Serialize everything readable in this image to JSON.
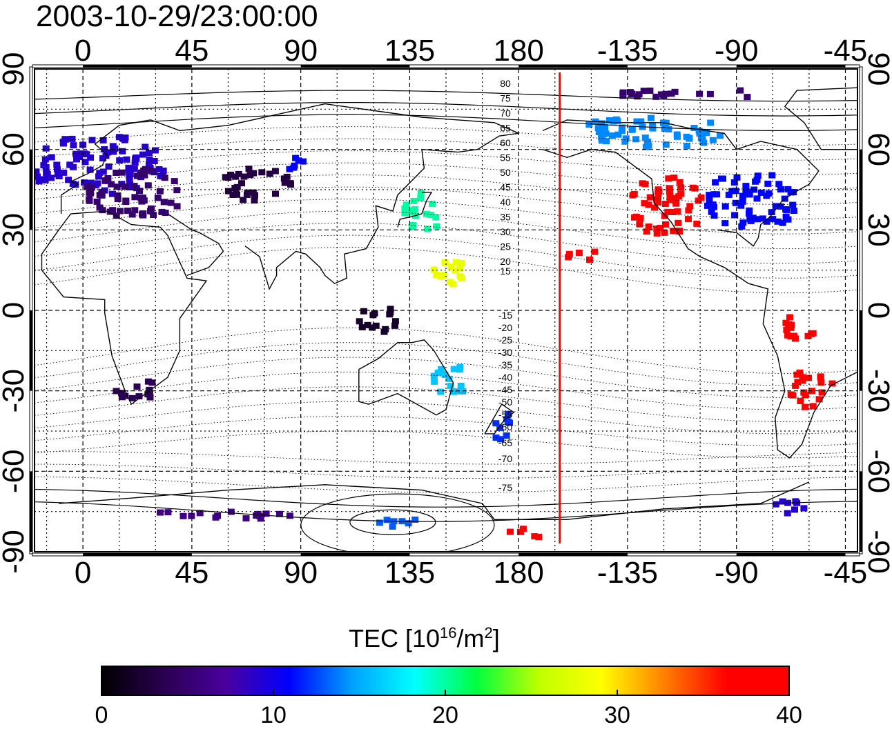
{
  "title": "2003-10-29/23:00:00",
  "axes": {
    "lon_ticks_top": [
      "0",
      "45",
      "90",
      "135",
      "180",
      "-135",
      "-90",
      "-45"
    ],
    "lon_ticks_bottom": [
      "0",
      "45",
      "90",
      "135",
      "180",
      "-135",
      "-90",
      "-45"
    ],
    "lat_ticks": [
      "90",
      "60",
      "30",
      "0",
      "-30",
      "-60",
      "-90"
    ],
    "lon_range": [
      -20,
      320
    ],
    "lat_range": [
      -90,
      90
    ]
  },
  "contour_labels": [
    "80",
    "75",
    "70",
    "65",
    "60",
    "55",
    "50",
    "45",
    "40",
    "35",
    "30",
    "25",
    "20",
    "15",
    "-15",
    "-20",
    "-25",
    "-30",
    "-35",
    "-40",
    "-45",
    "-50",
    "-55",
    "-60",
    "-65",
    "-70",
    "-75"
  ],
  "marker": {
    "lon": 197,
    "color": "#ff0000"
  },
  "colorbar": {
    "title_main": "TEC  [10",
    "title_exp1": "16",
    "title_mid": "/m",
    "title_exp2": "2",
    "title_end": "]",
    "ticks": [
      "0",
      "10",
      "20",
      "30",
      "40"
    ],
    "range": [
      0,
      40
    ],
    "stops": [
      "#000000",
      "#2a0050",
      "#4a00a0",
      "#0000ff",
      "#00a0ff",
      "#00ffff",
      "#00ff40",
      "#c0ff00",
      "#ffff00",
      "#ff8000",
      "#ff0000",
      "#ff0000"
    ]
  },
  "tec_regions": [
    {
      "lon": 5,
      "lat": 55,
      "w": 55,
      "h": 22,
      "tec": 9
    },
    {
      "lon": 20,
      "lat": 45,
      "w": 40,
      "h": 18,
      "tec": 5
    },
    {
      "lon": 70,
      "lat": 48,
      "w": 30,
      "h": 12,
      "tec": 3
    },
    {
      "lon": 88,
      "lat": 56,
      "w": 14,
      "h": 5,
      "tec": 11
    },
    {
      "lon": 140,
      "lat": 38,
      "w": 18,
      "h": 14,
      "tec": 20
    },
    {
      "lon": 120,
      "lat": -2,
      "w": 16,
      "h": 12,
      "tec": 2
    },
    {
      "lon": 20,
      "lat": -28,
      "w": 16,
      "h": 10,
      "tec": 4
    },
    {
      "lon": 150,
      "lat": -25,
      "w": 14,
      "h": 12,
      "tec": 16
    },
    {
      "lon": 172,
      "lat": -42,
      "w": 10,
      "h": 10,
      "tec": 12
    },
    {
      "lon": 240,
      "lat": 40,
      "w": 30,
      "h": 22,
      "tec": 40
    },
    {
      "lon": 275,
      "lat": 42,
      "w": 40,
      "h": 20,
      "tec": 11
    },
    {
      "lon": 235,
      "lat": 68,
      "w": 60,
      "h": 12,
      "tec": 14
    },
    {
      "lon": 250,
      "lat": 82,
      "w": 60,
      "h": 4,
      "tec": 5
    },
    {
      "lon": 300,
      "lat": -28,
      "w": 18,
      "h": 14,
      "tec": 40
    },
    {
      "lon": 295,
      "lat": -5,
      "w": 14,
      "h": 10,
      "tec": 40
    },
    {
      "lon": 205,
      "lat": 22,
      "w": 12,
      "h": 6,
      "tec": 40
    },
    {
      "lon": 150,
      "lat": 15,
      "w": 14,
      "h": 10,
      "tec": 28
    },
    {
      "lon": 290,
      "lat": -72,
      "w": 14,
      "h": 5,
      "tec": 9
    },
    {
      "lon": 183,
      "lat": -82,
      "w": 16,
      "h": 4,
      "tec": 40
    },
    {
      "lon": 130,
      "lat": -78,
      "w": 20,
      "h": 3,
      "tec": 13
    },
    {
      "lon": 60,
      "lat": -75,
      "w": 70,
      "h": 3,
      "tec": 6
    }
  ]
}
